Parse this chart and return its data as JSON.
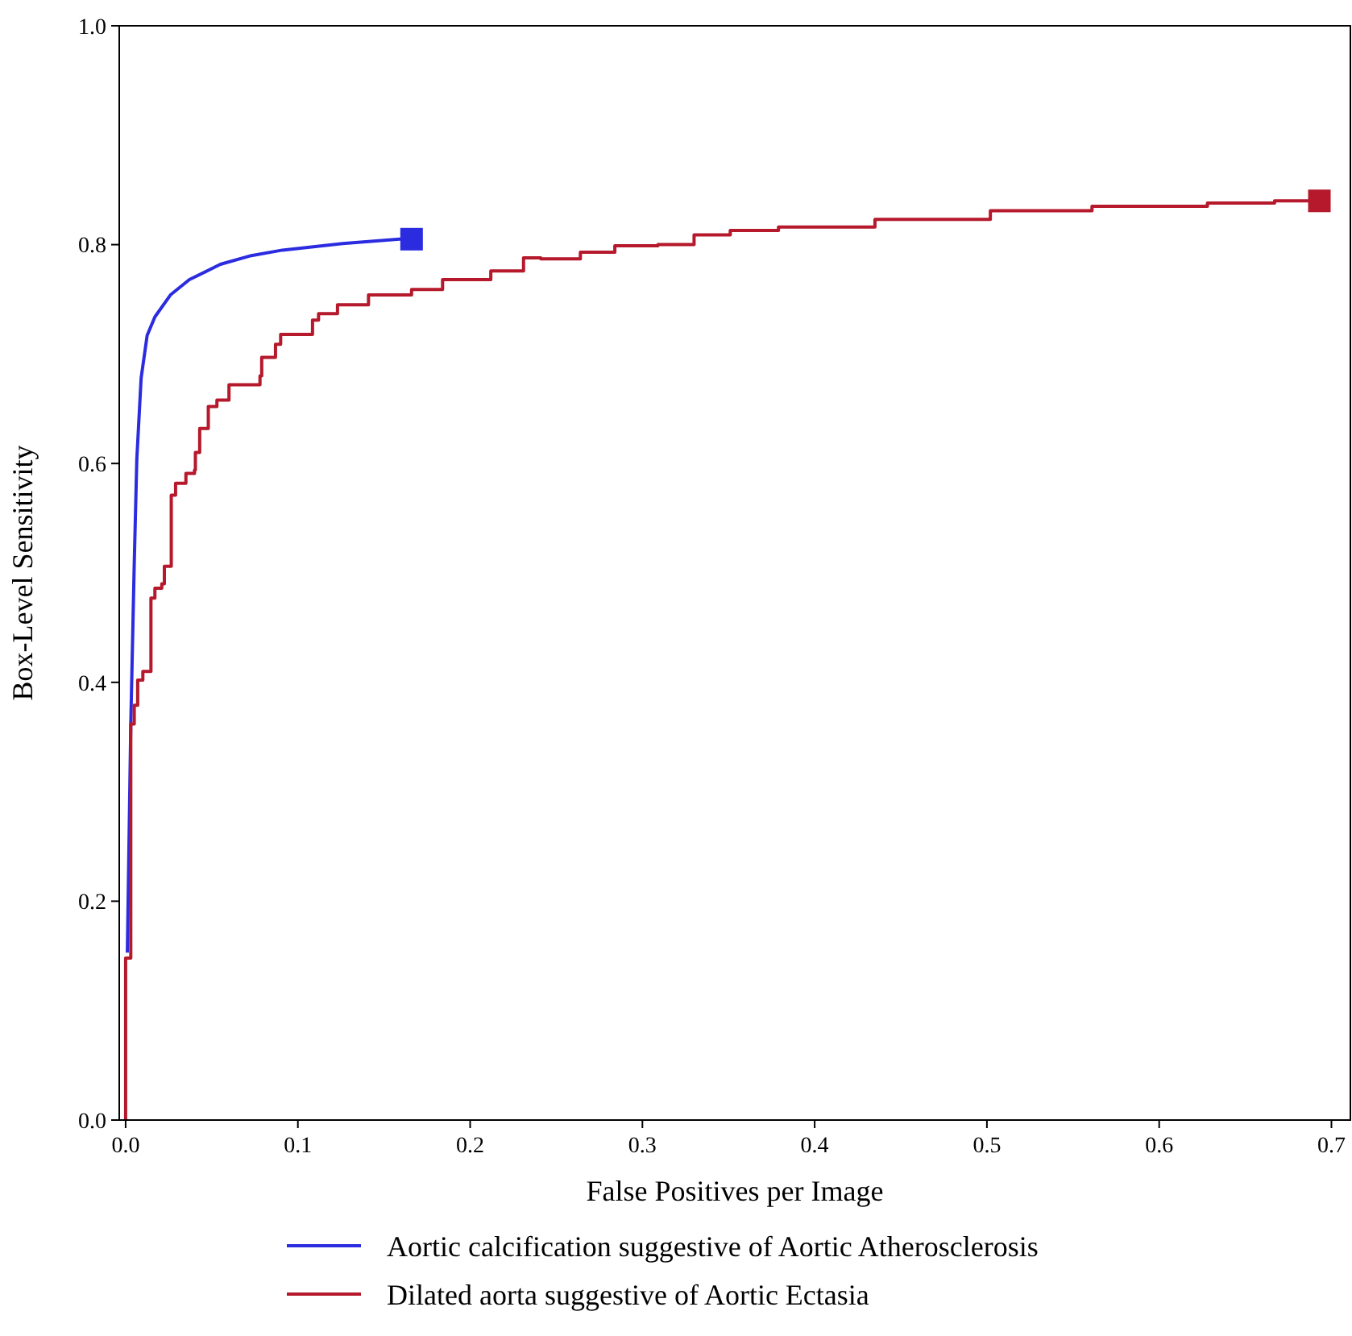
{
  "chart_data": {
    "type": "line",
    "xlabel": "False Positives per Image",
    "ylabel": "Box-Level Sensitivity",
    "xlim": [
      -0.0037,
      0.711
    ],
    "ylim": [
      0,
      1
    ],
    "xticks": [
      {
        "value": 0,
        "label": "0.0"
      },
      0.1,
      0.2,
      0.3,
      0.4,
      0.5,
      0.6,
      0.7
    ],
    "yticks": [
      {
        "value": 0,
        "label": "0.0"
      },
      0.2,
      0.4,
      0.6,
      0.8,
      {
        "value": 1,
        "label": "1.0"
      }
    ],
    "grid": false,
    "legend": "bottom",
    "series": [
      {
        "name": "Aortic calcification suggestive of Aortic Atherosclerosis",
        "color": "#2b2be0",
        "x": [
          0.001,
          0.003,
          0.005,
          0.0065,
          0.009,
          0.0125,
          0.017,
          0.026,
          0.037,
          0.055,
          0.073,
          0.091,
          0.126,
          0.159,
          0.166
        ],
        "values": [
          0.153,
          0.362,
          0.508,
          0.604,
          0.678,
          0.717,
          0.734,
          0.754,
          0.768,
          0.782,
          0.79,
          0.795,
          0.801,
          0.805,
          0.805
        ]
      },
      {
        "name": "Dilated aorta suggestive of Aortic Ectasia",
        "type": "step",
        "color": "#b5192b",
        "x": [
          0,
          0,
          0.003,
          0.005,
          0.007,
          0.01,
          0.0147,
          0.0147,
          0.017,
          0.021,
          0.0225,
          0.026,
          0.0265,
          0.029,
          0.035,
          0.04,
          0.0405,
          0.043,
          0.048,
          0.053,
          0.06,
          0.072,
          0.078,
          0.079,
          0.087,
          0.09,
          0.098,
          0.1085,
          0.112,
          0.123,
          0.141,
          0.166,
          0.184,
          0.212,
          0.231,
          0.241,
          0.264,
          0.284,
          0.309,
          0.33,
          0.351,
          0.379,
          0.435,
          0.502,
          0.561,
          0.628,
          0.667,
          0.693
        ],
        "values": [
          0,
          0.148,
          0.362,
          0.379,
          0.402,
          0.41,
          0.418,
          0.477,
          0.486,
          0.49,
          0.506,
          0.506,
          0.571,
          0.582,
          0.591,
          0.594,
          0.61,
          0.632,
          0.652,
          0.658,
          0.672,
          0.672,
          0.68,
          0.697,
          0.709,
          0.718,
          0.718,
          0.731,
          0.737,
          0.745,
          0.754,
          0.759,
          0.768,
          0.776,
          0.788,
          0.787,
          0.793,
          0.799,
          0.8,
          0.809,
          0.813,
          0.816,
          0.823,
          0.831,
          0.835,
          0.838,
          0.84,
          0.84
        ]
      },
      {
        "type": "scatter",
        "marker": "square",
        "color": "#2b2be0",
        "x": [
          0.166
        ],
        "values": [
          0.805
        ]
      },
      {
        "type": "scatter",
        "marker": "square",
        "color": "#b5192b",
        "x": [
          0.693
        ],
        "values": [
          0.84
        ]
      }
    ]
  }
}
